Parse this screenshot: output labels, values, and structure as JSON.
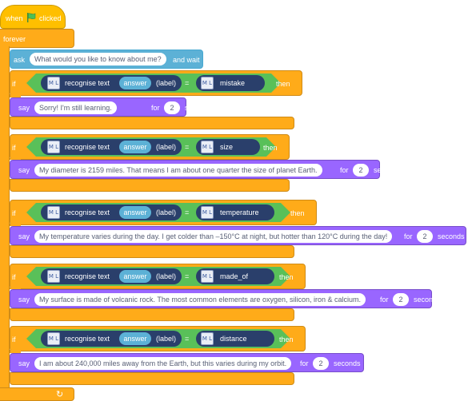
{
  "hat": {
    "when": "when",
    "clicked": "clicked",
    "flag_icon": "green-flag-icon"
  },
  "forever": {
    "label": "forever"
  },
  "ask": {
    "label": "ask",
    "question": "What would you like to know about me?",
    "suffix": "and wait"
  },
  "rows": [
    {
      "if": "if",
      "reporter": "recognise text",
      "answer": "answer",
      "label_word": "(label)",
      "eq": "=",
      "category": "mistake",
      "then": "then",
      "say": "say",
      "message": "Sorry! I'm still learning.",
      "for": "for",
      "secs": "2",
      "seconds": "seconds"
    },
    {
      "if": "if",
      "reporter": "recognise text",
      "answer": "answer",
      "label_word": "(label)",
      "eq": "=",
      "category": "size",
      "then": "then",
      "say": "say",
      "message": "My diameter is 2159 miles. That means I am about one quarter the size of planet Earth.",
      "for": "for",
      "secs": "2",
      "seconds": "seconds"
    },
    {
      "if": "if",
      "reporter": "recognise text",
      "answer": "answer",
      "label_word": "(label)",
      "eq": "=",
      "category": "temperature",
      "then": "then",
      "say": "say",
      "message": "My temperature varies during the day. I get colder than –150°C at night, but hotter than 120°C during the day!",
      "for": "for",
      "secs": "2",
      "seconds": "seconds"
    },
    {
      "if": "if",
      "reporter": "recognise text",
      "answer": "answer",
      "label_word": "(label)",
      "eq": "=",
      "category": "made_of",
      "then": "then",
      "say": "say",
      "message": "My surface is made of volcanic rock. The most common elements are oxygen, silicon, iron & calcium.",
      "for": "for",
      "secs": "2",
      "seconds": "seconds"
    },
    {
      "if": "if",
      "reporter": "recognise text",
      "answer": "answer",
      "label_word": "(label)",
      "eq": "=",
      "category": "distance",
      "then": "then",
      "say": "say",
      "message": "I am about 240,000 miles away from the Earth, but this varies during my orbit.",
      "for": "for",
      "secs": "2",
      "seconds": "seconds"
    }
  ],
  "ml_icon": {
    "text": "M L",
    "icon": "ml-model-icon"
  },
  "loop_arrow": "↻",
  "colors": {
    "events": "#ffbf00",
    "control": "#ffab19",
    "sensing": "#5cb1d6",
    "looks": "#9966ff",
    "operator": "#59c059",
    "ml": "#2a3f6b"
  }
}
